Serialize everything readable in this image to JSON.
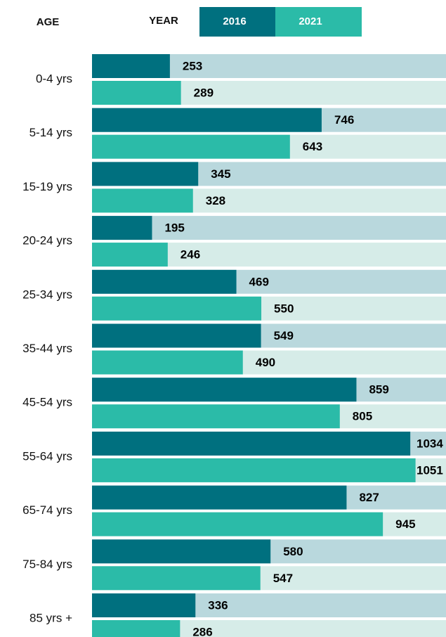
{
  "chart_data": {
    "type": "bar",
    "orientation": "horizontal",
    "y_axis_label": "AGE",
    "legend_title": "YEAR",
    "categories": [
      "0-4 yrs",
      "5-14 yrs",
      "15-19 yrs",
      "20-24 yrs",
      "25-34 yrs",
      "35-44 yrs",
      "45-54 yrs",
      "55-64 yrs",
      "65-74 yrs",
      "75-84 yrs",
      "85 yrs +"
    ],
    "series": [
      {
        "name": "2016",
        "color": "#00707f",
        "track_color": "#b9d8dd",
        "values": [
          253,
          746,
          345,
          195,
          469,
          549,
          859,
          1034,
          827,
          580,
          336
        ]
      },
      {
        "name": "2021",
        "color": "#2bbba8",
        "track_color": "#d6ece8",
        "values": [
          289,
          643,
          328,
          246,
          550,
          490,
          805,
          1051,
          945,
          547,
          286
        ]
      }
    ],
    "xlim": [
      0,
      1150
    ]
  }
}
